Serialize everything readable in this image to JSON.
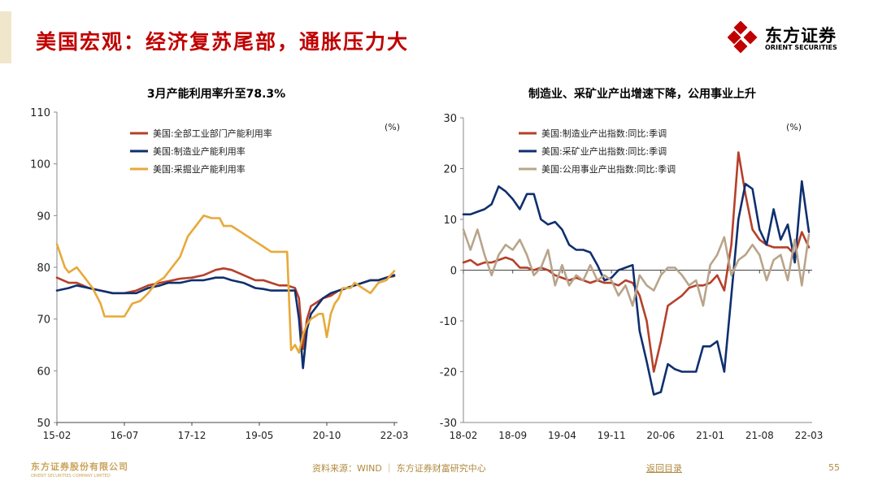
{
  "header": {
    "title": "美国宏观：经济复苏尾部，通胀压力大",
    "logo_cn": "东方证券",
    "logo_en": "ORIENT SECURITIES"
  },
  "footer": {
    "logo_cn": "东方证券股份有限公司",
    "logo_en": "ORIENT SECURITIES COMPANY LIMITED",
    "source": "资料来源：WIND ｜ 东方证券财富研究中心",
    "back_link": "返回目录",
    "page_number": "55"
  },
  "colors": {
    "brand_red": "#c00000",
    "gold": "#b08a3e"
  },
  "chart_data": [
    {
      "type": "line",
      "title": "3月产能利用率升至78.3%",
      "unit_label": "(%)",
      "ylim": [
        50,
        110
      ],
      "yticks": [
        50,
        60,
        70,
        80,
        90,
        100,
        110
      ],
      "xticks": [
        "15-02",
        "16-07",
        "17-12",
        "19-05",
        "20-10",
        "22-03"
      ],
      "xtick_index": [
        0,
        17,
        34,
        51,
        68,
        85
      ],
      "x_range": [
        0,
        85
      ],
      "legend_position": "top-left",
      "series": [
        {
          "name": "美国:全部工业部门产能利用率",
          "color": "#b5402a",
          "x": [
            0,
            3,
            5,
            8,
            11,
            14,
            17,
            20,
            23,
            26,
            28,
            31,
            34,
            37,
            40,
            42,
            44,
            47,
            50,
            52,
            54,
            56,
            58,
            60,
            61,
            62,
            63,
            64,
            65,
            67,
            69,
            71,
            73,
            75,
            77,
            79,
            81,
            83,
            85
          ],
          "values": [
            78,
            77,
            77,
            76,
            75.5,
            75,
            75,
            75.5,
            76.5,
            77,
            77.3,
            77.8,
            78,
            78.5,
            79.5,
            79.8,
            79.5,
            78.5,
            77.5,
            77.5,
            77,
            76.5,
            76.5,
            76,
            74,
            64.2,
            70,
            72.5,
            73,
            74,
            74.5,
            75.5,
            76,
            76.5,
            77,
            77.5,
            77.5,
            78,
            78.3
          ]
        },
        {
          "name": "美国:制造业产能利用率",
          "color": "#0f2f6e",
          "x": [
            0,
            3,
            5,
            8,
            11,
            14,
            17,
            20,
            23,
            26,
            28,
            31,
            34,
            37,
            40,
            42,
            44,
            47,
            50,
            52,
            54,
            56,
            58,
            60,
            61,
            62,
            63,
            64,
            65,
            67,
            69,
            71,
            73,
            75,
            77,
            79,
            81,
            83,
            85
          ],
          "values": [
            75.5,
            76,
            76.5,
            76,
            75.5,
            75,
            75,
            75,
            76,
            76.5,
            77,
            77,
            77.5,
            77.5,
            78,
            78,
            77.5,
            77,
            76,
            75.8,
            75.5,
            75.5,
            75.5,
            75.5,
            70,
            60.5,
            68,
            71,
            72,
            74,
            75,
            75.5,
            76,
            76.5,
            77,
            77.5,
            77.5,
            78,
            78.5
          ]
        },
        {
          "name": "美国:采掘业产能利用率",
          "color": "#e8a93a",
          "x": [
            0,
            2,
            3,
            5,
            7,
            9,
            11,
            12,
            13,
            15,
            17,
            19,
            21,
            23,
            25,
            27,
            29,
            31,
            33,
            35,
            37,
            39,
            41,
            42,
            44,
            46,
            48,
            50,
            52,
            54,
            56,
            58,
            59,
            60,
            61,
            62,
            63,
            64,
            65,
            66,
            67,
            68,
            69,
            70,
            71,
            72,
            73,
            74,
            75,
            77,
            79,
            81,
            83,
            85
          ],
          "values": [
            84.5,
            80,
            79,
            80,
            78,
            76,
            73,
            70.5,
            70.5,
            70.5,
            70.5,
            73,
            73.5,
            75,
            77,
            78,
            80,
            82,
            86,
            88,
            90,
            89.5,
            89.5,
            88,
            88,
            87,
            86,
            85,
            84,
            83,
            83,
            83,
            64,
            65,
            63.5,
            67,
            69,
            70,
            70.5,
            71,
            71,
            66.5,
            71,
            73,
            74,
            76,
            76,
            76,
            77,
            76,
            75,
            77,
            77.5,
            79.3
          ]
        }
      ]
    },
    {
      "type": "line",
      "title": "制造业、采矿业产出增速下降，公用事业上升",
      "unit_label": "(%)",
      "ylim": [
        -30,
        30
      ],
      "yticks": [
        -30,
        -20,
        -10,
        0,
        10,
        20,
        30
      ],
      "xticks": [
        "18-02",
        "18-09",
        "19-04",
        "19-11",
        "20-06",
        "21-01",
        "21-08",
        "22-03"
      ],
      "xtick_index": [
        0,
        7,
        14,
        21,
        28,
        35,
        42,
        49
      ],
      "x_range": [
        0,
        49
      ],
      "legend_position": "top-left",
      "series": [
        {
          "name": "美国:制造业产出指数:同比:季调",
          "color": "#b5402a",
          "x": [
            0,
            1,
            2,
            3,
            4,
            5,
            6,
            7,
            8,
            9,
            10,
            11,
            12,
            13,
            14,
            15,
            16,
            17,
            18,
            19,
            20,
            21,
            22,
            23,
            24,
            25,
            26,
            27,
            28,
            29,
            30,
            31,
            32,
            33,
            34,
            35,
            36,
            37,
            38,
            39,
            40,
            41,
            42,
            43,
            44,
            45,
            46,
            47,
            48,
            49
          ],
          "values": [
            1.5,
            2,
            1,
            1.5,
            1.5,
            2,
            2.5,
            2,
            0.5,
            0.5,
            0,
            0.5,
            0,
            -1,
            -1.5,
            -2,
            -1.5,
            -2,
            -2.5,
            -2,
            -2.5,
            -2.5,
            -3,
            -2,
            -2.5,
            -5,
            -10,
            -20,
            -14,
            -7,
            -6,
            -5,
            -3.5,
            -3,
            -3,
            -2.5,
            -1,
            -4,
            5,
            23.2,
            15,
            8,
            6,
            5,
            4.5,
            4.5,
            4.5,
            3,
            7.5,
            4.5
          ]
        },
        {
          "name": "美国:采矿业产出指数:同比:季调",
          "color": "#0f2f6e",
          "x": [
            0,
            1,
            2,
            3,
            4,
            5,
            6,
            7,
            8,
            9,
            10,
            11,
            12,
            13,
            14,
            15,
            16,
            17,
            18,
            19,
            20,
            21,
            22,
            23,
            24,
            25,
            26,
            27,
            28,
            29,
            30,
            31,
            32,
            33,
            34,
            35,
            36,
            37,
            38,
            39,
            40,
            41,
            42,
            43,
            44,
            45,
            46,
            47,
            48,
            49
          ],
          "values": [
            11,
            11,
            11.5,
            12,
            13,
            16.5,
            15.5,
            14,
            12,
            15,
            15,
            10,
            9,
            9.5,
            8,
            5,
            4,
            4,
            3.5,
            1,
            -2,
            -1.5,
            0,
            0.5,
            1,
            -12,
            -18,
            -24.5,
            -24,
            -18.5,
            -19.5,
            -20,
            -20,
            -20,
            -15,
            -15,
            -14,
            -20,
            -5,
            10,
            17,
            16,
            8,
            5,
            12,
            6,
            9,
            1.5,
            17.5,
            7.5
          ]
        },
        {
          "name": "美国:公用事业产出指数:同比:季调",
          "color": "#b8a48a",
          "x": [
            0,
            1,
            2,
            3,
            4,
            5,
            6,
            7,
            8,
            9,
            10,
            11,
            12,
            13,
            14,
            15,
            16,
            17,
            18,
            19,
            20,
            21,
            22,
            23,
            24,
            25,
            26,
            27,
            28,
            29,
            30,
            31,
            32,
            33,
            34,
            35,
            36,
            37,
            38,
            39,
            40,
            41,
            42,
            43,
            44,
            45,
            46,
            47,
            48,
            49
          ],
          "values": [
            8,
            4,
            8,
            3,
            -1,
            3,
            5,
            4,
            6,
            3,
            -1,
            0.5,
            4,
            -3,
            1,
            -3,
            -1,
            -2,
            1,
            -2,
            -1,
            -2,
            -5,
            -3,
            -7,
            -1,
            -3,
            -4,
            -1,
            0.5,
            0.5,
            -1,
            -3,
            -2,
            -7,
            1,
            3,
            6.5,
            -1,
            2,
            3,
            5,
            3,
            -2,
            2,
            3,
            -2,
            6,
            -3,
            7
          ]
        }
      ]
    }
  ]
}
